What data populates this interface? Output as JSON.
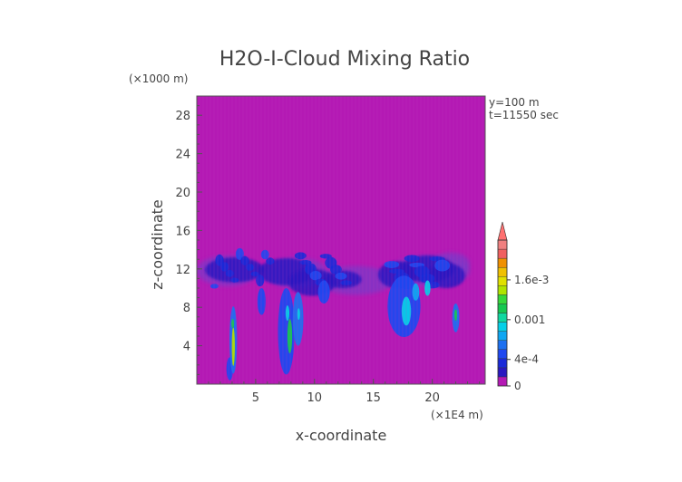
{
  "chart_data": {
    "type": "heatmap",
    "title": "H2O-I-Cloud Mixing Ratio",
    "xlabel": "x-coordinate",
    "ylabel": "z-coordinate",
    "x_unit": "(×1E4 m)",
    "y_unit": "(×1000 m)",
    "xlim": [
      0,
      24.5
    ],
    "ylim": [
      0,
      30
    ],
    "xticks": [
      "5",
      "10",
      "15",
      "20"
    ],
    "yticks": [
      "4",
      "8",
      "12",
      "16",
      "20",
      "24",
      "28"
    ],
    "info": [
      "y=100 m",
      "t=11550 sec"
    ],
    "colorbar": {
      "labels": [
        "0",
        "4e-4",
        "0.001",
        "1.6e-3"
      ],
      "label_values": [
        0,
        0.0004,
        0.001,
        0.0016
      ],
      "max": 0.0022,
      "extend": "max",
      "colors": [
        "#b419b4",
        "#2a18c0",
        "#1a2ad8",
        "#1f48f0",
        "#1c70f0",
        "#0ea6f2",
        "#05d0e8",
        "#10d8a0",
        "#15c850",
        "#36d83a",
        "#b0e400",
        "#e0e000",
        "#f0c000",
        "#f09000",
        "#f06060",
        "#f08080",
        "#ff7070"
      ]
    },
    "features": [
      {
        "x": 2.8,
        "y": 1.6,
        "w": 0.28,
        "h": 1.2,
        "v": 0.0005
      },
      {
        "x": 3.1,
        "y": 4.6,
        "w": 0.32,
        "h": 3.5,
        "v": 0.0006
      },
      {
        "x": 3.1,
        "y": 3.9,
        "w": 0.13,
        "h": 2.0,
        "v": 0.0014
      },
      {
        "x": 3.05,
        "y": 6.3,
        "w": 0.1,
        "h": 0.5,
        "v": 0.0011
      },
      {
        "x": 5.5,
        "y": 8.6,
        "w": 0.35,
        "h": 1.4,
        "v": 0.0004
      },
      {
        "x": 7.6,
        "y": 5.5,
        "w": 0.7,
        "h": 4.5,
        "v": 0.0005
      },
      {
        "x": 7.9,
        "y": 5.0,
        "w": 0.2,
        "h": 1.8,
        "v": 0.0012
      },
      {
        "x": 7.7,
        "y": 7.4,
        "w": 0.16,
        "h": 0.8,
        "v": 0.0009
      },
      {
        "x": 8.6,
        "y": 6.8,
        "w": 0.45,
        "h": 2.8,
        "v": 0.0006
      },
      {
        "x": 8.65,
        "y": 7.3,
        "w": 0.12,
        "h": 0.6,
        "v": 0.0009
      },
      {
        "x": 10.8,
        "y": 9.6,
        "w": 0.5,
        "h": 1.2,
        "v": 0.0004
      },
      {
        "x": 17.6,
        "y": 8.1,
        "w": 1.4,
        "h": 3.2,
        "v": 0.0005
      },
      {
        "x": 17.8,
        "y": 7.6,
        "w": 0.4,
        "h": 1.5,
        "v": 0.0009
      },
      {
        "x": 18.6,
        "y": 9.6,
        "w": 0.3,
        "h": 0.9,
        "v": 0.0008
      },
      {
        "x": 19.6,
        "y": 10.0,
        "w": 0.25,
        "h": 0.8,
        "v": 0.0009
      },
      {
        "x": 22.0,
        "y": 6.9,
        "w": 0.3,
        "h": 1.5,
        "v": 0.0006
      },
      {
        "x": 22.0,
        "y": 7.2,
        "w": 0.11,
        "h": 0.6,
        "v": 0.0011
      }
    ]
  }
}
